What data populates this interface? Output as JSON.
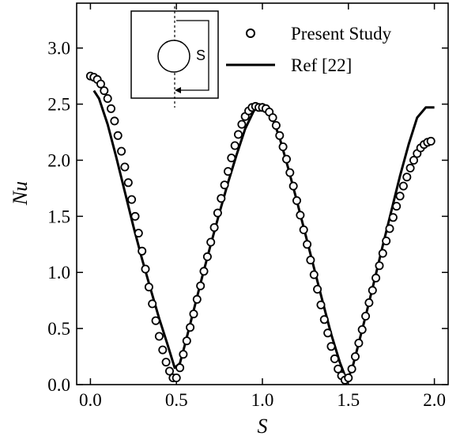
{
  "chart_data": {
    "type": "line",
    "xlabel": "S",
    "ylabel": "Nu",
    "xlim": [
      -0.08,
      2.08
    ],
    "ylim": [
      0.0,
      3.4
    ],
    "x_ticks": [
      0.0,
      0.5,
      1.0,
      1.5,
      2.0
    ],
    "x_tick_labels": [
      "0.0",
      "0.5",
      "1.0",
      "1.5",
      "2.0"
    ],
    "y_ticks": [
      0.0,
      0.5,
      1.0,
      1.5,
      2.0,
      2.5,
      3.0
    ],
    "y_tick_labels": [
      "0.0",
      "0.5",
      "1.0",
      "1.5",
      "2.0",
      "2.5",
      "3.0"
    ],
    "grid": false,
    "legend_position": "top-right",
    "series": [
      {
        "name": "Present Study",
        "style": "open-circle-markers",
        "x": [
          0.0,
          0.02,
          0.04,
          0.06,
          0.08,
          0.1,
          0.12,
          0.14,
          0.16,
          0.18,
          0.2,
          0.22,
          0.24,
          0.26,
          0.28,
          0.3,
          0.32,
          0.34,
          0.36,
          0.38,
          0.4,
          0.42,
          0.44,
          0.46,
          0.48,
          0.5,
          0.52,
          0.54,
          0.56,
          0.58,
          0.6,
          0.62,
          0.64,
          0.66,
          0.68,
          0.7,
          0.72,
          0.74,
          0.76,
          0.78,
          0.8,
          0.82,
          0.84,
          0.86,
          0.88,
          0.9,
          0.92,
          0.94,
          0.96,
          0.98,
          1.0,
          1.02,
          1.04,
          1.06,
          1.08,
          1.1,
          1.12,
          1.14,
          1.16,
          1.18,
          1.2,
          1.22,
          1.24,
          1.26,
          1.28,
          1.3,
          1.32,
          1.34,
          1.36,
          1.38,
          1.4,
          1.42,
          1.44,
          1.46,
          1.48,
          1.5,
          1.52,
          1.54,
          1.56,
          1.58,
          1.6,
          1.62,
          1.64,
          1.66,
          1.68,
          1.7,
          1.72,
          1.74,
          1.76,
          1.78,
          1.8,
          1.82,
          1.84,
          1.86,
          1.88,
          1.9,
          1.92,
          1.94,
          1.96,
          1.98
        ],
        "y": [
          2.75,
          2.74,
          2.72,
          2.68,
          2.62,
          2.55,
          2.46,
          2.35,
          2.22,
          2.08,
          1.94,
          1.8,
          1.65,
          1.5,
          1.35,
          1.19,
          1.03,
          0.87,
          0.72,
          0.57,
          0.43,
          0.31,
          0.2,
          0.12,
          0.06,
          0.06,
          0.15,
          0.27,
          0.39,
          0.51,
          0.63,
          0.76,
          0.88,
          1.01,
          1.14,
          1.27,
          1.4,
          1.53,
          1.66,
          1.78,
          1.9,
          2.02,
          2.13,
          2.23,
          2.32,
          2.39,
          2.44,
          2.47,
          2.48,
          2.47,
          2.47,
          2.46,
          2.43,
          2.38,
          2.31,
          2.22,
          2.12,
          2.01,
          1.89,
          1.77,
          1.64,
          1.51,
          1.38,
          1.25,
          1.11,
          0.98,
          0.85,
          0.71,
          0.58,
          0.46,
          0.34,
          0.23,
          0.14,
          0.08,
          0.04,
          0.06,
          0.14,
          0.25,
          0.37,
          0.49,
          0.61,
          0.73,
          0.84,
          0.95,
          1.06,
          1.17,
          1.28,
          1.39,
          1.49,
          1.59,
          1.68,
          1.77,
          1.85,
          1.93,
          2.0,
          2.06,
          2.11,
          2.14,
          2.16,
          2.17
        ]
      },
      {
        "name": "Ref [22]",
        "style": "solid-line",
        "x": [
          0.02,
          0.05,
          0.1,
          0.15,
          0.2,
          0.25,
          0.3,
          0.35,
          0.4,
          0.45,
          0.49,
          0.52,
          0.55,
          0.6,
          0.65,
          0.7,
          0.75,
          0.8,
          0.85,
          0.9,
          0.95,
          1.0,
          1.05,
          1.1,
          1.15,
          1.2,
          1.25,
          1.3,
          1.35,
          1.4,
          1.45,
          1.49,
          1.52,
          1.55,
          1.6,
          1.65,
          1.7,
          1.75,
          1.8,
          1.85,
          1.9,
          1.95,
          1.97,
          2.0
        ],
        "y": [
          2.62,
          2.55,
          2.32,
          2.03,
          1.72,
          1.41,
          1.12,
          0.85,
          0.59,
          0.35,
          0.15,
          0.19,
          0.36,
          0.66,
          0.96,
          1.25,
          1.53,
          1.8,
          2.05,
          2.28,
          2.44,
          2.5,
          2.41,
          2.2,
          1.93,
          1.64,
          1.34,
          1.04,
          0.74,
          0.45,
          0.2,
          0.04,
          0.13,
          0.31,
          0.61,
          0.92,
          1.24,
          1.55,
          1.86,
          2.14,
          2.38,
          2.47,
          2.47,
          2.47
        ]
      }
    ],
    "inset": {
      "label": "S"
    }
  }
}
